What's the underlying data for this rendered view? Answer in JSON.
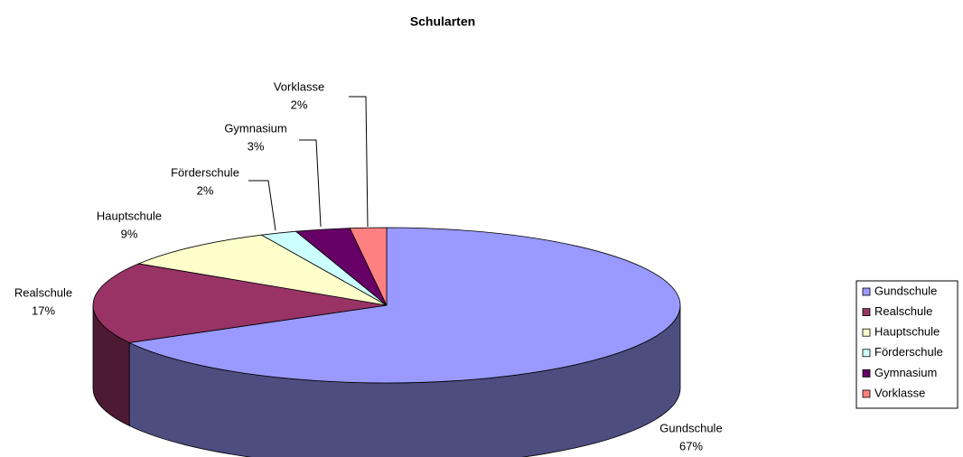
{
  "chart_data": {
    "type": "pie3d",
    "title": "Schularten",
    "categories": [
      "Gundschule",
      "Realschule",
      "Hauptschule",
      "Förderschule",
      "Gymnasium",
      "Vorklasse"
    ],
    "values": [
      67,
      17,
      9,
      2,
      3,
      2
    ],
    "value_labels": [
      "67%",
      "17%",
      "9%",
      "2%",
      "3%",
      "2%"
    ],
    "colors": [
      "#9999ff",
      "#993366",
      "#ffffcc",
      "#ccffff",
      "#660066",
      "#ff8080"
    ],
    "legend": "right"
  }
}
